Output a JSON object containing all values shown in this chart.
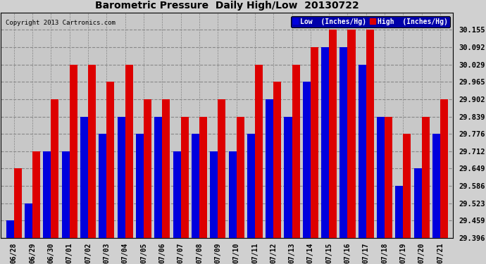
{
  "title": "Barometric Pressure  Daily High/Low  20130722",
  "copyright": "Copyright 2013 Cartronics.com",
  "legend_low": "Low  (Inches/Hg)",
  "legend_high": "High  (Inches/Hg)",
  "dates": [
    "06/28",
    "06/29",
    "06/30",
    "07/01",
    "07/02",
    "07/03",
    "07/04",
    "07/05",
    "07/06",
    "07/07",
    "07/08",
    "07/09",
    "07/10",
    "07/11",
    "07/12",
    "07/13",
    "07/14",
    "07/15",
    "07/16",
    "07/17",
    "07/18",
    "07/19",
    "07/20",
    "07/21"
  ],
  "low_values": [
    29.459,
    29.523,
    29.712,
    29.712,
    29.839,
    29.776,
    29.839,
    29.776,
    29.839,
    29.712,
    29.776,
    29.712,
    29.712,
    29.776,
    29.902,
    29.839,
    29.965,
    30.092,
    30.092,
    30.029,
    29.839,
    29.586,
    29.649,
    29.776
  ],
  "high_values": [
    29.649,
    29.712,
    29.902,
    30.029,
    30.029,
    29.965,
    30.029,
    29.902,
    29.902,
    29.839,
    29.839,
    29.902,
    29.839,
    30.029,
    29.965,
    30.029,
    30.092,
    30.155,
    30.155,
    30.155,
    29.839,
    29.776,
    29.839,
    29.902
  ],
  "low_color": "#0000dd",
  "high_color": "#dd0000",
  "bg_color": "#d0d0d0",
  "plot_bg_color": "#c8c8c8",
  "yticks": [
    29.396,
    29.459,
    29.523,
    29.586,
    29.649,
    29.712,
    29.776,
    29.839,
    29.902,
    29.965,
    30.029,
    30.092,
    30.155
  ],
  "ymin": 29.396,
  "ymax": 30.218,
  "bar_width": 0.42,
  "legend_bg": "#0000aa",
  "legend_text_color": "#ffffff"
}
